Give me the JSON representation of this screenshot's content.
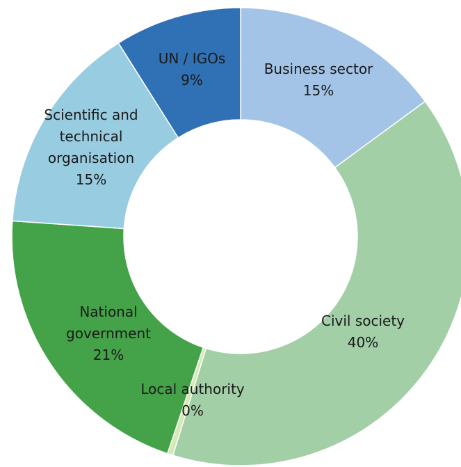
{
  "chart_data": {
    "type": "pie",
    "variant": "donut",
    "legend": "none",
    "start": "12 o'clock, clockwise",
    "slices": [
      {
        "label": "Business sector",
        "value": 15,
        "display": "15%",
        "color": "#a3c4e6",
        "label_lines": [
          "Business sector",
          "15%"
        ]
      },
      {
        "label": "Civil society",
        "value": 40,
        "display": "40%",
        "color": "#a2cfa6",
        "label_lines": [
          "Civil society",
          "40%"
        ]
      },
      {
        "label": "Local authority",
        "value": 0.4,
        "display": "0%",
        "color": "#d4e9b3",
        "label_lines": [
          "Local authority",
          "0%"
        ]
      },
      {
        "label": "National government",
        "value": 21,
        "display": "21%",
        "color": "#44a348",
        "label_lines": [
          "National",
          "government",
          "21%"
        ]
      },
      {
        "label": "Scientific and technical organisation",
        "value": 15,
        "display": "15%",
        "color": "#98cce0",
        "label_lines": [
          "Scientific and",
          "technical",
          "organisation",
          "15%"
        ]
      },
      {
        "label": "UN / IGOs",
        "value": 9,
        "display": "9%",
        "color": "#3070b4",
        "label_lines": [
          "UN / IGOs",
          "9%"
        ]
      }
    ]
  }
}
